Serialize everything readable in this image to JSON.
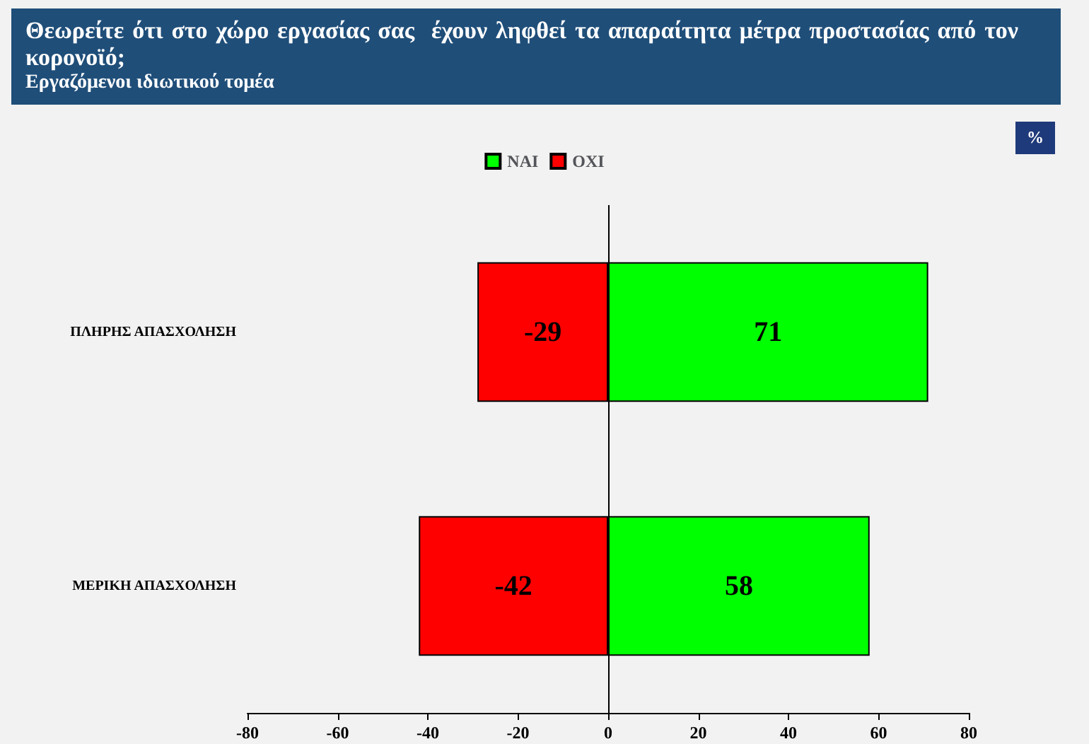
{
  "chart_data": {
    "type": "bar",
    "title": "Θεωρείτε ότι στο χώρο εργασίας σας  έχουν ληφθεί τα απαραίτητα μέτρα προστασίας από τον κορονοϊό;",
    "subtitle": "Εργαζόμενοι ιδιωτικού τομέα",
    "annotations": [
      "%"
    ],
    "orientation": "horizontal",
    "stacked": true,
    "categories": [
      "ΠΛΗΡΗΣ ΑΠΑΣΧΟΛΗΣΗ",
      "ΜΕΡΙΚΗ ΑΠΑΣΧΟΛΗΣΗ"
    ],
    "series": [
      {
        "name": "ΝΑΙ",
        "color": "#00ff00",
        "values": [
          71,
          58
        ]
      },
      {
        "name": "ΟΧΙ",
        "color": "#ff0000",
        "values": [
          -29,
          -42
        ]
      }
    ],
    "xlim": [
      -80,
      80
    ],
    "xticks": [
      -80,
      -60,
      -40,
      -20,
      0,
      20,
      40,
      60,
      80
    ],
    "ref_lines": [
      {
        "axis": "x",
        "value": 0,
        "color": "#000000"
      }
    ],
    "data_labels": true,
    "legend": "top",
    "grid": false
  }
}
